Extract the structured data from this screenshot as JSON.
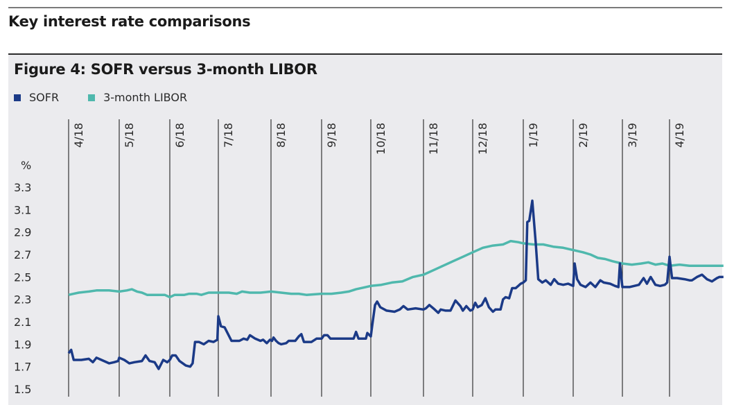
{
  "header": {
    "section_title": "Key interest rate comparisons"
  },
  "figure": {
    "title": "Figure 4: SOFR versus 3-month LIBOR",
    "legend": [
      {
        "label": "SOFR",
        "color": "#1b3a87"
      },
      {
        "label": "3-month LIBOR",
        "color": "#4fb8ad"
      }
    ],
    "y_unit": "%"
  },
  "chart_data": {
    "type": "line",
    "title": "Figure 4: SOFR versus 3-month LIBOR",
    "xlabel": "",
    "ylabel": "%",
    "ylim": [
      1.5,
      3.3
    ],
    "y_ticks": [
      "3.3",
      "3.1",
      "2.9",
      "2.7",
      "2.5",
      "2.3",
      "2.1",
      "1.9",
      "1.7",
      "1.5"
    ],
    "x_ticks": [
      "4/18",
      "5/18",
      "6/18",
      "7/18",
      "8/18",
      "9/18",
      "10/18",
      "11/18",
      "12/18",
      "1/19",
      "2/19",
      "3/19",
      "4/19"
    ],
    "grid": "vertical lines at month starts",
    "legend_position": "top-left",
    "series": [
      {
        "name": "SOFR",
        "color": "#1b3a87",
        "points": [
          [
            0.0,
            1.82
          ],
          [
            0.05,
            1.85
          ],
          [
            0.1,
            1.76
          ],
          [
            0.25,
            1.76
          ],
          [
            0.4,
            1.77
          ],
          [
            0.48,
            1.74
          ],
          [
            0.55,
            1.78
          ],
          [
            0.65,
            1.76
          ],
          [
            0.8,
            1.73
          ],
          [
            0.9,
            1.74
          ],
          [
            0.98,
            1.75
          ],
          [
            1.0,
            1.78
          ],
          [
            1.1,
            1.76
          ],
          [
            1.2,
            1.73
          ],
          [
            1.3,
            1.74
          ],
          [
            1.45,
            1.75
          ],
          [
            1.52,
            1.8
          ],
          [
            1.6,
            1.75
          ],
          [
            1.7,
            1.74
          ],
          [
            1.78,
            1.68
          ],
          [
            1.87,
            1.76
          ],
          [
            1.95,
            1.74
          ],
          [
            2.0,
            1.76
          ],
          [
            2.05,
            1.8
          ],
          [
            2.12,
            1.8
          ],
          [
            2.2,
            1.75
          ],
          [
            2.33,
            1.71
          ],
          [
            2.42,
            1.7
          ],
          [
            2.47,
            1.73
          ],
          [
            2.52,
            1.92
          ],
          [
            2.6,
            1.92
          ],
          [
            2.7,
            1.9
          ],
          [
            2.8,
            1.93
          ],
          [
            2.9,
            1.92
          ],
          [
            2.98,
            1.94
          ],
          [
            3.0,
            2.15
          ],
          [
            3.05,
            2.06
          ],
          [
            3.12,
            2.05
          ],
          [
            3.25,
            1.93
          ],
          [
            3.4,
            1.93
          ],
          [
            3.48,
            1.95
          ],
          [
            3.55,
            1.94
          ],
          [
            3.6,
            1.98
          ],
          [
            3.7,
            1.95
          ],
          [
            3.8,
            1.93
          ],
          [
            3.85,
            1.94
          ],
          [
            3.92,
            1.91
          ],
          [
            3.98,
            1.94
          ],
          [
            4.02,
            1.93
          ],
          [
            4.05,
            1.96
          ],
          [
            4.1,
            1.93
          ],
          [
            4.15,
            1.91
          ],
          [
            4.2,
            1.9
          ],
          [
            4.3,
            1.91
          ],
          [
            4.35,
            1.93
          ],
          [
            4.48,
            1.93
          ],
          [
            4.55,
            1.97
          ],
          [
            4.6,
            1.99
          ],
          [
            4.65,
            1.92
          ],
          [
            4.8,
            1.92
          ],
          [
            4.9,
            1.95
          ],
          [
            5.0,
            1.95
          ],
          [
            5.05,
            1.98
          ],
          [
            5.12,
            1.98
          ],
          [
            5.18,
            1.95
          ],
          [
            5.3,
            1.95
          ],
          [
            5.5,
            1.95
          ],
          [
            5.65,
            1.95
          ],
          [
            5.7,
            2.01
          ],
          [
            5.75,
            1.95
          ],
          [
            5.9,
            1.95
          ],
          [
            5.93,
            2.0
          ],
          [
            6.0,
            1.97
          ],
          [
            6.03,
            2.08
          ],
          [
            6.08,
            2.25
          ],
          [
            6.12,
            2.28
          ],
          [
            6.18,
            2.23
          ],
          [
            6.3,
            2.2
          ],
          [
            6.45,
            2.19
          ],
          [
            6.55,
            2.21
          ],
          [
            6.62,
            2.24
          ],
          [
            6.7,
            2.21
          ],
          [
            6.85,
            2.22
          ],
          [
            7.0,
            2.21
          ],
          [
            7.05,
            2.22
          ],
          [
            7.12,
            2.25
          ],
          [
            7.2,
            2.22
          ],
          [
            7.3,
            2.18
          ],
          [
            7.35,
            2.21
          ],
          [
            7.45,
            2.2
          ],
          [
            7.55,
            2.2
          ],
          [
            7.65,
            2.29
          ],
          [
            7.75,
            2.24
          ],
          [
            7.8,
            2.2
          ],
          [
            7.87,
            2.24
          ],
          [
            7.95,
            2.2
          ],
          [
            8.0,
            2.21
          ],
          [
            8.05,
            2.27
          ],
          [
            8.1,
            2.23
          ],
          [
            8.18,
            2.25
          ],
          [
            8.25,
            2.31
          ],
          [
            8.32,
            2.23
          ],
          [
            8.4,
            2.19
          ],
          [
            8.45,
            2.21
          ],
          [
            8.55,
            2.21
          ],
          [
            8.6,
            2.3
          ],
          [
            8.65,
            2.32
          ],
          [
            8.72,
            2.31
          ],
          [
            8.78,
            2.4
          ],
          [
            8.85,
            2.4
          ],
          [
            8.9,
            2.42
          ],
          [
            8.95,
            2.44
          ],
          [
            9.0,
            2.45
          ],
          [
            9.05,
            2.47
          ],
          [
            9.08,
            2.99
          ],
          [
            9.12,
            3.0
          ],
          [
            9.18,
            3.18
          ],
          [
            9.25,
            2.8
          ],
          [
            9.3,
            2.48
          ],
          [
            9.38,
            2.45
          ],
          [
            9.45,
            2.47
          ],
          [
            9.55,
            2.43
          ],
          [
            9.62,
            2.48
          ],
          [
            9.7,
            2.44
          ],
          [
            9.8,
            2.43
          ],
          [
            9.9,
            2.44
          ],
          [
            10.0,
            2.42
          ],
          [
            10.03,
            2.62
          ],
          [
            10.08,
            2.48
          ],
          [
            10.15,
            2.43
          ],
          [
            10.25,
            2.41
          ],
          [
            10.35,
            2.45
          ],
          [
            10.45,
            2.41
          ],
          [
            10.55,
            2.47
          ],
          [
            10.62,
            2.45
          ],
          [
            10.75,
            2.44
          ],
          [
            10.85,
            2.42
          ],
          [
            10.92,
            2.41
          ],
          [
            10.95,
            2.62
          ],
          [
            11.0,
            2.41
          ],
          [
            11.15,
            2.41
          ],
          [
            11.25,
            2.42
          ],
          [
            11.35,
            2.43
          ],
          [
            11.45,
            2.49
          ],
          [
            11.52,
            2.44
          ],
          [
            11.6,
            2.5
          ],
          [
            11.7,
            2.43
          ],
          [
            11.8,
            2.42
          ],
          [
            11.9,
            2.43
          ],
          [
            11.95,
            2.45
          ],
          [
            12.0,
            2.68
          ],
          [
            12.05,
            2.49
          ],
          [
            12.15,
            2.49
          ],
          [
            12.3,
            2.48
          ],
          [
            12.4,
            2.47
          ],
          [
            12.45,
            2.47
          ],
          [
            12.55,
            2.5
          ],
          [
            12.65,
            2.52
          ],
          [
            12.75,
            2.48
          ],
          [
            12.85,
            2.46
          ],
          [
            12.95,
            2.49
          ],
          [
            13.0,
            2.5
          ],
          [
            13.08,
            2.5
          ]
        ]
      },
      {
        "name": "3-month LIBOR",
        "color": "#4fb8ad",
        "points": [
          [
            0.0,
            2.34
          ],
          [
            0.1,
            2.35
          ],
          [
            0.2,
            2.36
          ],
          [
            0.4,
            2.37
          ],
          [
            0.55,
            2.38
          ],
          [
            0.8,
            2.38
          ],
          [
            1.0,
            2.37
          ],
          [
            1.15,
            2.38
          ],
          [
            1.25,
            2.39
          ],
          [
            1.35,
            2.37
          ],
          [
            1.45,
            2.36
          ],
          [
            1.55,
            2.34
          ],
          [
            1.7,
            2.34
          ],
          [
            1.9,
            2.34
          ],
          [
            2.0,
            2.32
          ],
          [
            2.1,
            2.34
          ],
          [
            2.3,
            2.34
          ],
          [
            2.4,
            2.35
          ],
          [
            2.55,
            2.35
          ],
          [
            2.65,
            2.34
          ],
          [
            2.8,
            2.36
          ],
          [
            3.0,
            2.36
          ],
          [
            3.2,
            2.36
          ],
          [
            3.35,
            2.35
          ],
          [
            3.45,
            2.37
          ],
          [
            3.6,
            2.36
          ],
          [
            3.8,
            2.36
          ],
          [
            4.0,
            2.37
          ],
          [
            4.2,
            2.36
          ],
          [
            4.4,
            2.35
          ],
          [
            4.55,
            2.35
          ],
          [
            4.7,
            2.34
          ],
          [
            5.0,
            2.35
          ],
          [
            5.2,
            2.35
          ],
          [
            5.4,
            2.36
          ],
          [
            5.55,
            2.37
          ],
          [
            5.7,
            2.39
          ],
          [
            5.9,
            2.41
          ],
          [
            6.0,
            2.42
          ],
          [
            6.2,
            2.43
          ],
          [
            6.4,
            2.45
          ],
          [
            6.6,
            2.46
          ],
          [
            6.8,
            2.5
          ],
          [
            7.0,
            2.52
          ],
          [
            7.2,
            2.56
          ],
          [
            7.4,
            2.6
          ],
          [
            7.6,
            2.64
          ],
          [
            7.8,
            2.68
          ],
          [
            8.0,
            2.72
          ],
          [
            8.2,
            2.76
          ],
          [
            8.4,
            2.78
          ],
          [
            8.6,
            2.79
          ],
          [
            8.75,
            2.82
          ],
          [
            8.9,
            2.81
          ],
          [
            9.0,
            2.8
          ],
          [
            9.2,
            2.79
          ],
          [
            9.4,
            2.79
          ],
          [
            9.6,
            2.77
          ],
          [
            9.8,
            2.76
          ],
          [
            10.0,
            2.74
          ],
          [
            10.2,
            2.72
          ],
          [
            10.35,
            2.7
          ],
          [
            10.5,
            2.67
          ],
          [
            10.65,
            2.66
          ],
          [
            10.8,
            2.64
          ],
          [
            11.0,
            2.62
          ],
          [
            11.2,
            2.61
          ],
          [
            11.4,
            2.62
          ],
          [
            11.55,
            2.63
          ],
          [
            11.7,
            2.61
          ],
          [
            11.85,
            2.62
          ],
          [
            12.0,
            2.6
          ],
          [
            12.2,
            2.61
          ],
          [
            12.4,
            2.6
          ],
          [
            12.6,
            2.6
          ],
          [
            12.8,
            2.6
          ],
          [
            13.08,
            2.6
          ]
        ]
      }
    ]
  }
}
